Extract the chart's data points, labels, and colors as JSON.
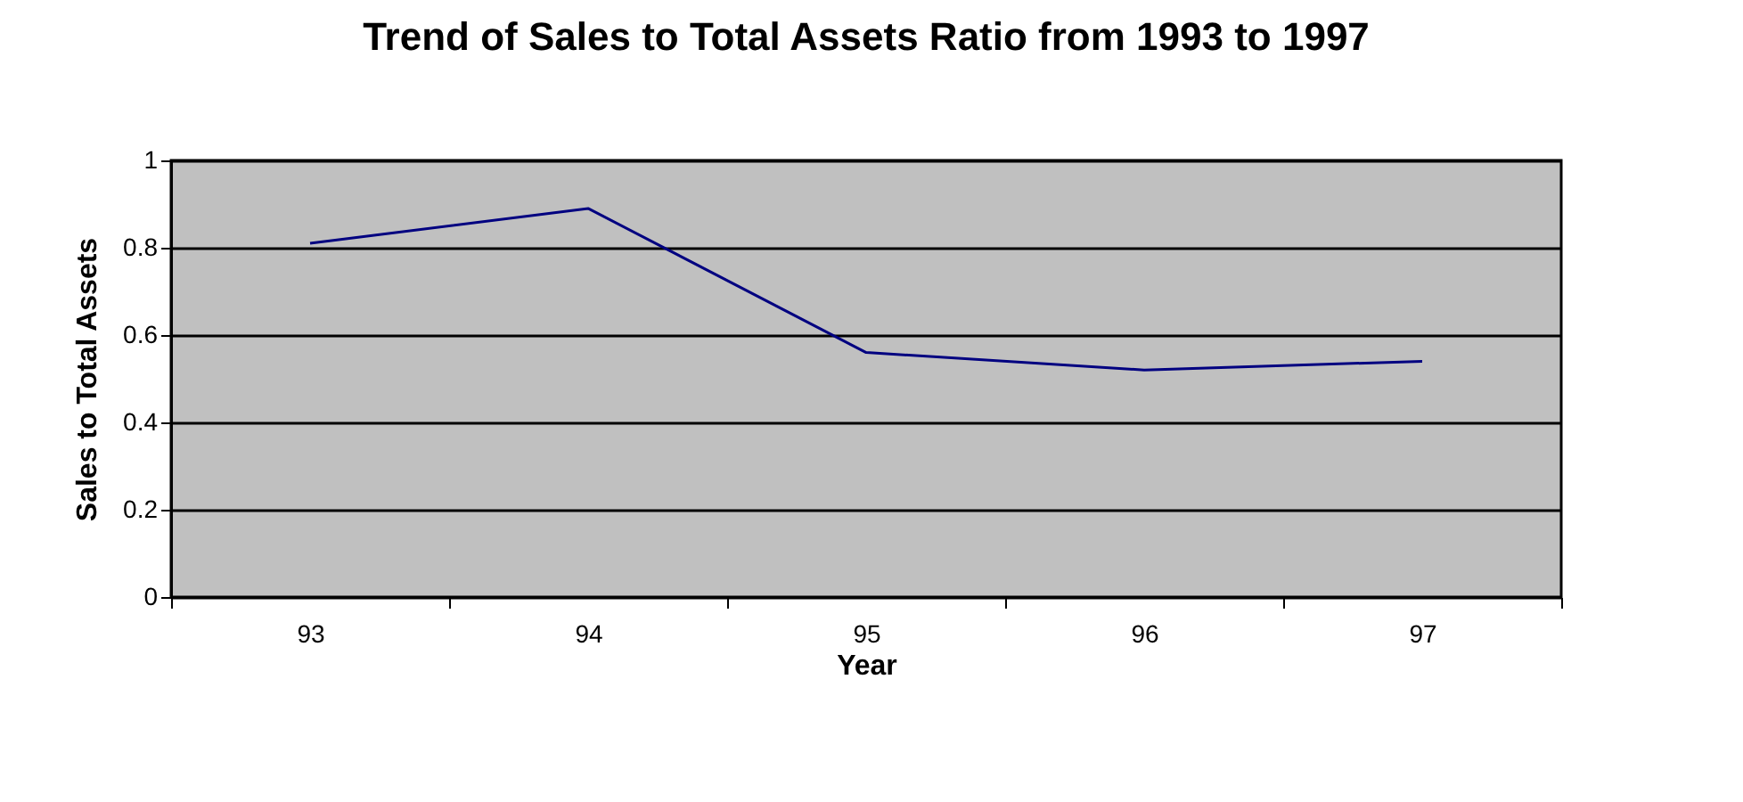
{
  "chart_data": {
    "type": "line",
    "title": "Trend of Sales to Total Assets Ratio from 1993 to 1997",
    "xlabel": "Year",
    "ylabel": "Sales to Total Assets",
    "categories": [
      "93",
      "94",
      "95",
      "96",
      "97"
    ],
    "series": [
      {
        "color": "#000080",
        "values": [
          0.81,
          0.89,
          0.56,
          0.52,
          0.54
        ]
      }
    ],
    "ylim": [
      0,
      1
    ],
    "yticks": [
      0,
      0.2,
      0.4,
      0.6,
      0.8,
      1
    ],
    "grid": "y",
    "marker": "none",
    "line_style": "solid"
  }
}
